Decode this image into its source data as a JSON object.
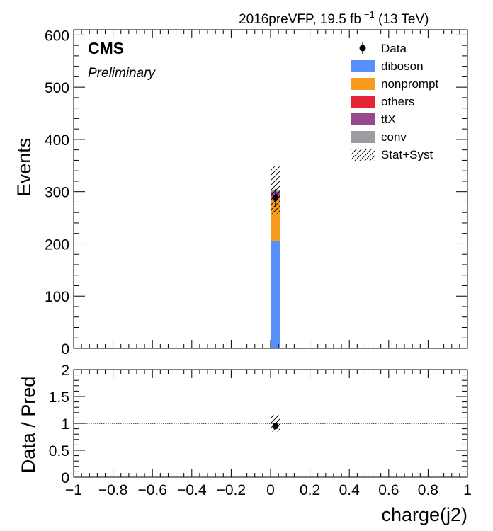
{
  "header": {
    "lumi_prefix": "2016preVFP, 19.5 fb",
    "lumi_exp": "−1",
    "lumi_suffix": " (13 TeV)",
    "experiment": "CMS",
    "status": "Preliminary"
  },
  "legend": {
    "placement": "top-right",
    "entries": [
      {
        "label": "Data",
        "kind": "data",
        "color": "#000000"
      },
      {
        "label": "diboson",
        "kind": "fill",
        "color": "#5790fc"
      },
      {
        "label": "nonprompt",
        "kind": "fill",
        "color": "#f89c20"
      },
      {
        "label": "others",
        "kind": "fill",
        "color": "#e42536"
      },
      {
        "label": "ttX",
        "kind": "fill",
        "color": "#964a8b"
      },
      {
        "label": "conv",
        "kind": "fill",
        "color": "#9c9ca1"
      },
      {
        "label": "Stat+Syst",
        "kind": "hatch",
        "color": "#000000"
      }
    ]
  },
  "chart_data": [
    {
      "type": "bar",
      "panel": "main",
      "ylabel": "Events",
      "xlim": [
        -1,
        1
      ],
      "ylim": [
        0,
        610
      ],
      "x_ticks": [
        -1,
        -0.8,
        -0.6,
        -0.4,
        -0.2,
        0,
        0.2,
        0.4,
        0.6,
        0.8,
        1
      ],
      "y_ticks": [
        0,
        100,
        200,
        300,
        400,
        500,
        600
      ],
      "y_tick_labels": [
        "0",
        "100",
        "200",
        "300",
        "400",
        "500",
        "600"
      ],
      "bin": [
        0,
        0.05
      ],
      "stack": [
        {
          "name": "diboson",
          "value": 206
        },
        {
          "name": "nonprompt",
          "value": 82
        },
        {
          "name": "others",
          "value": 3
        },
        {
          "name": "ttX",
          "value": 9
        },
        {
          "name": "conv",
          "value": 3
        }
      ],
      "prediction_total": 303,
      "uncertainty_band": [
        258,
        348
      ],
      "data": {
        "x": 0.025,
        "y": 288,
        "err": 17
      }
    },
    {
      "type": "scatter",
      "panel": "ratio",
      "xlabel": "charge(j2)",
      "ylabel": "Data / Pred",
      "xlim": [
        -1,
        1
      ],
      "ylim": [
        0,
        2
      ],
      "x_ticks": [
        -1,
        -0.8,
        -0.6,
        -0.4,
        -0.2,
        0,
        0.2,
        0.4,
        0.6,
        0.8,
        1
      ],
      "x_tick_labels": [
        "−1",
        "−0.8",
        "−0.6",
        "−0.4",
        "−0.2",
        "0",
        "0.2",
        "0.4",
        "0.6",
        "0.8",
        "1"
      ],
      "y_ticks": [
        0,
        0.5,
        1,
        1.5,
        2
      ],
      "y_tick_labels": [
        "0",
        "0.5",
        "1",
        "1.5",
        "2"
      ],
      "reference_line": 1,
      "uncertainty_band": [
        0.85,
        1.15
      ],
      "points": [
        {
          "x": 0.025,
          "y": 0.95,
          "err": 0.06
        }
      ]
    }
  ]
}
